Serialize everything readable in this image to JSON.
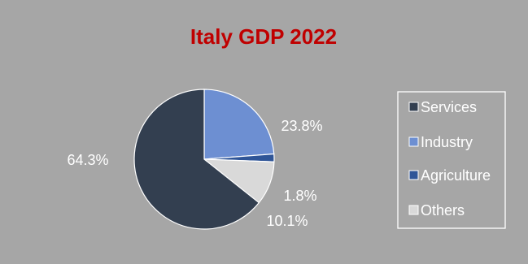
{
  "chart_data": {
    "type": "pie",
    "title": "Italy GDP 2022",
    "series": [
      {
        "name": "Services",
        "value": 64.3,
        "label": "64.3%",
        "color": "#333f50"
      },
      {
        "name": "Industry",
        "value": 23.8,
        "label": "23.8%",
        "color": "#6d8fd2"
      },
      {
        "name": "Agriculture",
        "value": 1.8,
        "label": "1.8%",
        "color": "#2f5597"
      },
      {
        "name": "Others",
        "value": 10.1,
        "label": "10.1%",
        "color": "#d9d9d9"
      }
    ],
    "legend_position": "right",
    "colors": {
      "background": "#a6a6a6",
      "title": "#c00000",
      "text": "#ffffff",
      "slice_border": "#ffffff"
    }
  }
}
